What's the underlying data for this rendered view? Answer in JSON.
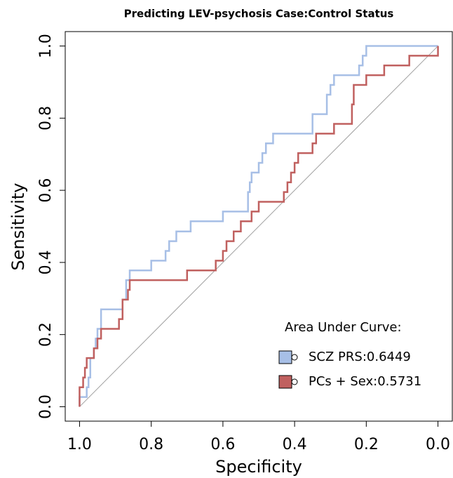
{
  "chart_data": {
    "type": "line",
    "title": "Predicting LEV-psychosis Case:Control Status",
    "x_label": "Specificity",
    "y_label": "Sensitivity",
    "legend_title": "Area Under Curve:",
    "xlim": [
      1.04,
      -0.04
    ],
    "ylim": [
      -0.04,
      1.04
    ],
    "xticks": [
      {
        "value": 1,
        "label": "1.0"
      },
      {
        "value": 0.8,
        "label": "0.8"
      },
      {
        "value": 0.6,
        "label": "0.6"
      },
      {
        "value": 0.4,
        "label": "0.4"
      },
      {
        "value": 0.2,
        "label": "0.2"
      },
      {
        "value": 0,
        "label": "0.0"
      }
    ],
    "yticks": [
      {
        "value": 0,
        "label": "0.0"
      },
      {
        "value": 0.2,
        "label": "0.2"
      },
      {
        "value": 0.4,
        "label": "0.4"
      },
      {
        "value": 0.6,
        "label": "0.6"
      },
      {
        "value": 0.8,
        "label": "0.8"
      },
      {
        "value": 1,
        "label": "1.0"
      }
    ],
    "diagonal": {
      "x": [
        1,
        0
      ],
      "y": [
        0,
        1
      ],
      "color": "#a0a0a0"
    },
    "series": [
      {
        "name": "SCZ PRS:0.6449",
        "color": "#a7bfe6",
        "x": [
          1,
          1,
          0.98,
          0.98,
          0.975,
          0.975,
          0.97,
          0.97,
          0.96,
          0.96,
          0.955,
          0.955,
          0.95,
          0.95,
          0.94,
          0.94,
          0.88,
          0.88,
          0.87,
          0.87,
          0.86,
          0.86,
          0.8,
          0.8,
          0.76,
          0.76,
          0.75,
          0.75,
          0.73,
          0.73,
          0.69,
          0.69,
          0.6,
          0.6,
          0.53,
          0.53,
          0.525,
          0.525,
          0.52,
          0.52,
          0.5,
          0.5,
          0.49,
          0.49,
          0.48,
          0.48,
          0.46,
          0.46,
          0.35,
          0.35,
          0.31,
          0.31,
          0.3,
          0.3,
          0.29,
          0.29,
          0.22,
          0.22,
          0.21,
          0.21,
          0.2,
          0.2,
          0
        ],
        "y": [
          0,
          0.027,
          0.027,
          0.054,
          0.054,
          0.081,
          0.081,
          0.135,
          0.135,
          0.162,
          0.162,
          0.189,
          0.189,
          0.216,
          0.216,
          0.27,
          0.27,
          0.297,
          0.297,
          0.351,
          0.351,
          0.378,
          0.378,
          0.405,
          0.405,
          0.432,
          0.432,
          0.459,
          0.459,
          0.486,
          0.486,
          0.514,
          0.514,
          0.541,
          0.541,
          0.595,
          0.595,
          0.622,
          0.622,
          0.649,
          0.649,
          0.676,
          0.676,
          0.703,
          0.703,
          0.73,
          0.73,
          0.757,
          0.757,
          0.811,
          0.811,
          0.865,
          0.865,
          0.892,
          0.892,
          0.919,
          0.919,
          0.946,
          0.946,
          0.973,
          0.973,
          1,
          1
        ]
      },
      {
        "name": "PCs + Sex:0.5731",
        "color": "#c0605f",
        "x": [
          1,
          1,
          0.99,
          0.99,
          0.985,
          0.985,
          0.98,
          0.98,
          0.96,
          0.96,
          0.95,
          0.95,
          0.94,
          0.94,
          0.89,
          0.89,
          0.88,
          0.88,
          0.865,
          0.865,
          0.86,
          0.86,
          0.7,
          0.7,
          0.62,
          0.62,
          0.6,
          0.6,
          0.59,
          0.59,
          0.57,
          0.57,
          0.55,
          0.55,
          0.52,
          0.52,
          0.5,
          0.5,
          0.43,
          0.43,
          0.42,
          0.42,
          0.41,
          0.41,
          0.4,
          0.4,
          0.39,
          0.39,
          0.35,
          0.35,
          0.34,
          0.34,
          0.29,
          0.29,
          0.24,
          0.24,
          0.235,
          0.235,
          0.2,
          0.2,
          0.15,
          0.15,
          0.08,
          0.08,
          0,
          0
        ],
        "y": [
          0,
          0.054,
          0.054,
          0.081,
          0.081,
          0.108,
          0.108,
          0.135,
          0.135,
          0.162,
          0.162,
          0.189,
          0.189,
          0.216,
          0.216,
          0.243,
          0.243,
          0.297,
          0.297,
          0.324,
          0.324,
          0.351,
          0.351,
          0.378,
          0.378,
          0.405,
          0.405,
          0.432,
          0.432,
          0.459,
          0.459,
          0.486,
          0.486,
          0.514,
          0.514,
          0.541,
          0.541,
          0.568,
          0.568,
          0.595,
          0.595,
          0.622,
          0.622,
          0.649,
          0.649,
          0.676,
          0.676,
          0.703,
          0.703,
          0.73,
          0.73,
          0.757,
          0.757,
          0.784,
          0.784,
          0.838,
          0.838,
          0.892,
          0.892,
          0.919,
          0.919,
          0.946,
          0.946,
          0.973,
          0.973,
          1
        ]
      }
    ]
  }
}
